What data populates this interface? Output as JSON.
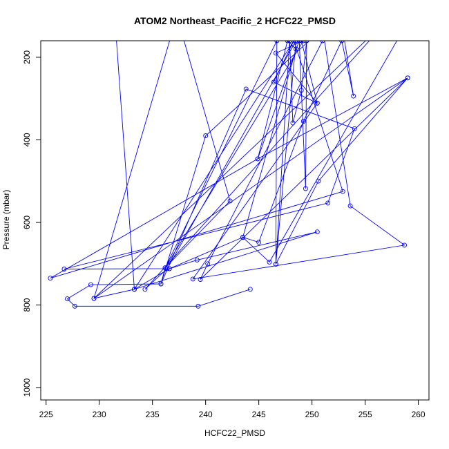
{
  "chart_data": {
    "type": "line",
    "title": "ATOM2 Northeast_Pacific_2 HCFC22_PMSD",
    "xlabel": "HCFC22_PMSD",
    "ylabel": "Pressure (mbar)",
    "xlim": [
      224.5,
      261
    ],
    "ylim": [
      1030,
      160
    ],
    "y_inverted": true,
    "grid": false,
    "legend": "none",
    "color": "#0000ff",
    "x_ticks": [
      "225",
      "230",
      "235",
      "240",
      "245",
      "250",
      "255",
      "260"
    ],
    "y_ticks": [
      "200",
      "400",
      "600",
      "800",
      "1000"
    ],
    "x_tick_values": [
      225,
      230,
      235,
      240,
      245,
      250,
      255,
      260
    ],
    "y_tick_values": [
      200,
      400,
      600,
      800,
      1000
    ],
    "series": [
      {
        "points": [
          [
            244.2,
            762
          ],
          [
            239.3,
            803
          ],
          [
            227.7,
            803
          ],
          [
            227.0,
            785
          ],
          [
            229.2,
            751
          ],
          [
            235.8,
            749
          ],
          [
            243.8,
            277
          ],
          [
            254.0,
            373
          ],
          [
            251.5,
            553
          ],
          [
            226.7,
            713
          ],
          [
            236.6,
            712
          ],
          [
            239.2,
            691
          ],
          [
            250.5,
            623
          ],
          [
            233.3,
            762
          ],
          [
            231.5,
            118
          ],
          [
            233.3,
            762
          ],
          [
            236.6,
            712
          ],
          [
            243.5,
            636
          ],
          [
            246.0,
            696
          ],
          [
            260.0,
            70
          ],
          [
            250.0,
            70
          ],
          [
            246.4,
            260
          ],
          [
            250.5,
            311
          ],
          [
            246.6,
            190
          ],
          [
            249.2,
            160
          ],
          [
            236.2,
            710
          ],
          [
            235.8,
            749
          ],
          [
            240.0,
            390
          ],
          [
            251.0,
            130
          ],
          [
            253.6,
            560
          ],
          [
            258.7,
            655
          ],
          [
            238.8,
            737
          ],
          [
            250.5,
            311
          ],
          [
            249.0,
            160
          ],
          [
            253.0,
            150
          ],
          [
            253.9,
            294
          ],
          [
            252.8,
            160
          ],
          [
            249.2,
            355
          ],
          [
            245.0,
            648
          ],
          [
            243.5,
            636
          ],
          [
            248.5,
            180
          ],
          [
            247.7,
            160
          ],
          [
            244.9,
            446
          ],
          [
            225.4,
            735
          ],
          [
            252.9,
            525
          ],
          [
            248.3,
            160
          ],
          [
            233.3,
            762
          ],
          [
            229.5,
            784
          ],
          [
            237.3,
            100
          ],
          [
            242.3,
            548
          ],
          [
            236.2,
            710
          ],
          [
            246.7,
            160
          ],
          [
            246.6,
            701
          ],
          [
            250.6,
            500
          ],
          [
            259.0,
            250
          ],
          [
            229.5,
            784
          ],
          [
            257.5,
            100
          ],
          [
            234.3,
            762
          ],
          [
            236.4,
            712
          ],
          [
            248.5,
            160
          ],
          [
            246.6,
            701
          ],
          [
            247.9,
            160
          ],
          [
            248.2,
            359
          ],
          [
            249.0,
            280
          ],
          [
            249.5,
            160
          ],
          [
            249.4,
            518
          ],
          [
            248.8,
            160
          ],
          [
            244.9,
            446
          ],
          [
            259.0,
            250
          ],
          [
            239.5,
            738
          ],
          [
            240.2,
            700
          ],
          [
            251.0,
            160
          ]
        ]
      }
    ]
  }
}
